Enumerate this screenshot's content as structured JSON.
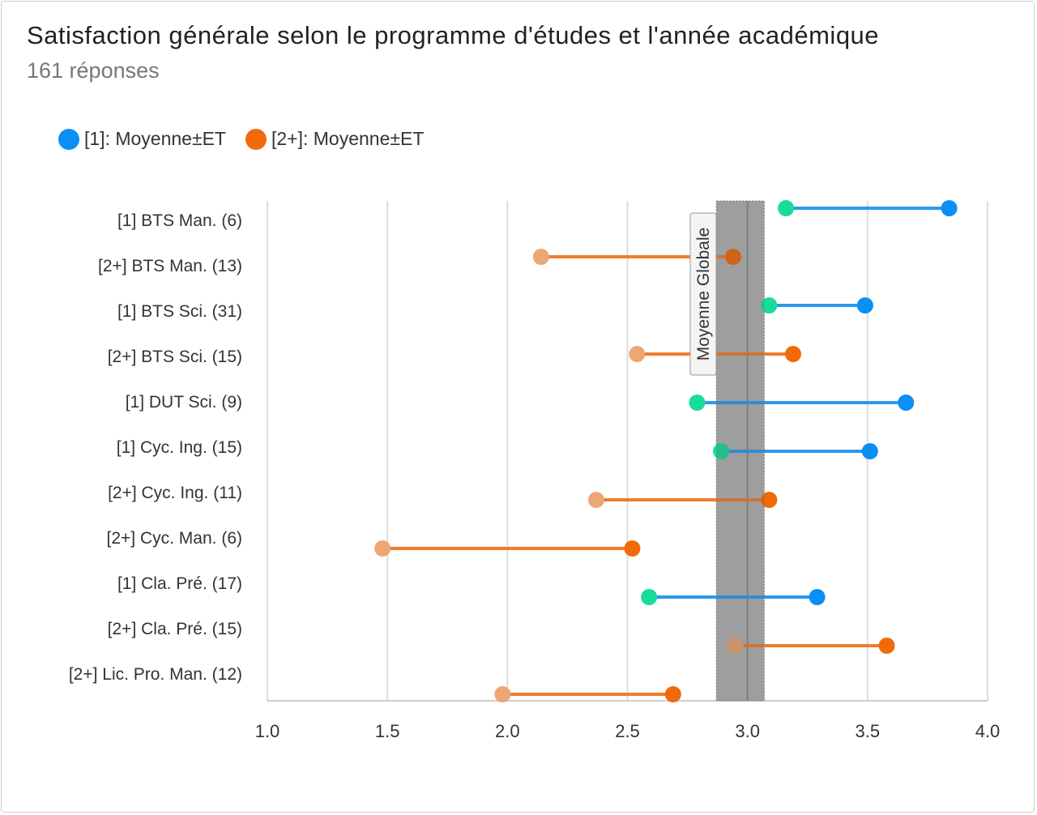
{
  "header": {
    "title": "Satisfaction générale selon le programme d'études et l'année académique",
    "subtitle": "161 réponses"
  },
  "legend": [
    {
      "label": "[1]: Moyenne±ET",
      "color": "#0a8ff5"
    },
    {
      "label": "[2+]: Moyenne±ET",
      "color": "#f06a0a"
    }
  ],
  "colors": {
    "year1_line": "#2a9af0",
    "year1_high": "#0a8ff5",
    "year1_low": "#18dc9a",
    "year2_line": "#ef7c30",
    "year2_high": "#f06a0a",
    "year2_low": "#eea674",
    "band": "#999999",
    "grid": "#dddddd"
  },
  "chart_data": {
    "type": "dumbbell",
    "xlim": [
      1.0,
      4.0
    ],
    "xticks": [
      "1.0",
      "1.5",
      "2.0",
      "2.5",
      "3.0",
      "3.5",
      "4.0"
    ],
    "grid": true,
    "legend_position": "top-left",
    "reference_band": {
      "label": "Moyenne Globale",
      "mean": 3.0,
      "low": 2.87,
      "high": 3.07
    },
    "categories": [
      "[1] BTS Man. (6)",
      "[2+] BTS Man. (13)",
      "[1] BTS Sci. (31)",
      "[2+] BTS Sci. (15)",
      "[1] DUT Sci. (9)",
      "[1] Cyc. Ing. (15)",
      "[2+] Cyc. Ing. (11)",
      "[2+] Cyc. Man. (6)",
      "[1] Cla. Pré. (17)",
      "[2+] Cla. Pré. (15)",
      "[2+] Lic. Pro. Man. (12)"
    ],
    "series": [
      {
        "category": "[1] BTS Man. (6)",
        "group": "1",
        "low": 3.16,
        "high": 3.84
      },
      {
        "category": "[2+] BTS Man. (13)",
        "group": "2+",
        "low": 2.14,
        "high": 2.94
      },
      {
        "category": "[1] BTS Sci. (31)",
        "group": "1",
        "low": 3.09,
        "high": 3.49
      },
      {
        "category": "[2+] BTS Sci. (15)",
        "group": "2+",
        "low": 2.54,
        "high": 3.19
      },
      {
        "category": "[1] DUT Sci. (9)",
        "group": "1",
        "low": 2.79,
        "high": 3.66
      },
      {
        "category": "[1] Cyc. Ing. (15)",
        "group": "1",
        "low": 2.89,
        "high": 3.51
      },
      {
        "category": "[2+] Cyc. Ing. (11)",
        "group": "2+",
        "low": 2.37,
        "high": 3.09
      },
      {
        "category": "[2+] Cyc. Man. (6)",
        "group": "2+",
        "low": 1.48,
        "high": 2.52
      },
      {
        "category": "[1] Cla. Pré. (17)",
        "group": "1",
        "low": 2.59,
        "high": 3.29
      },
      {
        "category": "[2+] Cla. Pré. (15)",
        "group": "2+",
        "low": 2.95,
        "high": 3.58
      },
      {
        "category": "[2+] Lic. Pro. Man. (12)",
        "group": "2+",
        "low": 1.98,
        "high": 2.69
      }
    ]
  }
}
